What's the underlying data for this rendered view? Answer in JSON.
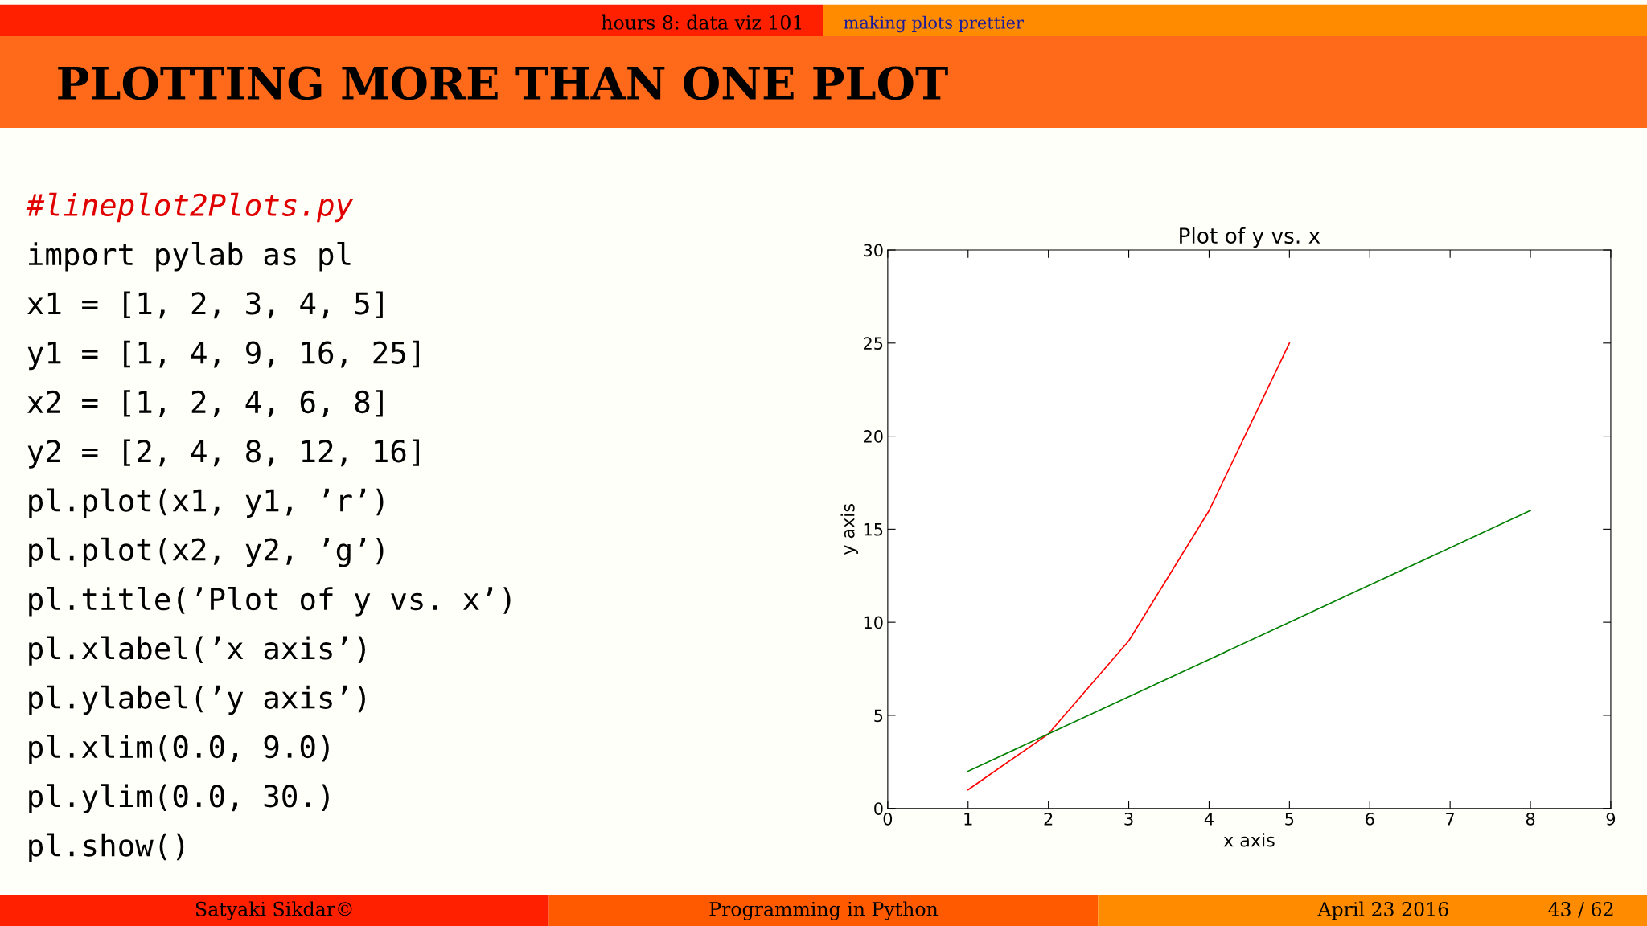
{
  "chart_data": {
    "type": "line",
    "title": "Plot of y vs. x",
    "xlabel": "x axis",
    "ylabel": "y axis",
    "series": [
      {
        "color": "#ff0000",
        "x": [
          1,
          2,
          3,
          4,
          5
        ],
        "values": [
          1,
          4,
          9,
          16,
          25
        ]
      },
      {
        "color": "#008000",
        "x": [
          1,
          2,
          4,
          6,
          8
        ],
        "values": [
          2,
          4,
          8,
          12,
          16
        ]
      }
    ],
    "xlim": [
      0,
      9
    ],
    "ylim": [
      0,
      30
    ],
    "xticks": [
      0,
      1,
      2,
      3,
      4,
      5,
      6,
      7,
      8,
      9
    ],
    "yticks": [
      0,
      5,
      10,
      15,
      20,
      25,
      30
    ],
    "grid": false,
    "marker": "none",
    "line_style": "solid",
    "annotations": [
      "hours 8: data viz 101",
      "making plots prettier",
      "PLOTTING MORE THAN ONE PLOT",
      "#lineplot2Plots.py",
      "import pylab as pl",
      "x1 = [1, 2, 3, 4, 5]",
      "y1 = [1, 4, 9, 16, 25]",
      "x2 = [1, 2, 4, 6, 8]",
      "y2 = [2, 4, 8, 12, 16]",
      "pl.plot(x1, y1, ’r’)",
      "pl.plot(x2, y2, ’g’)",
      "pl.title(’Plot of y vs. x’)",
      "pl.xlabel(’x axis’)",
      "pl.ylabel(’y axis’)",
      "pl.xlim(0.0, 9.0)",
      "pl.ylim(0.0, 30.)",
      "pl.show()",
      "Satyaki Sikdar©",
      "Programming in Python",
      "April 23 2016",
      "43 / 62"
    ]
  }
}
